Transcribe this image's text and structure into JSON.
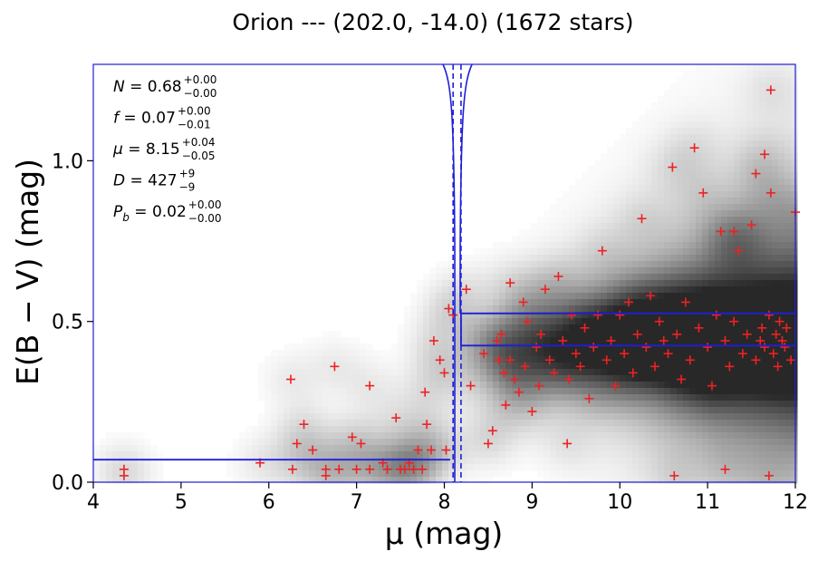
{
  "chart_data": {
    "type": "scatter",
    "title": "Orion --- (202.0, -14.0) (1672 stars)",
    "xlabel": "μ (mag)",
    "ylabel": "E(B − V) (mag)",
    "xlim": [
      4,
      12
    ],
    "ylim": [
      0,
      1.3
    ],
    "xticks": [
      "4",
      "5",
      "6",
      "7",
      "8",
      "9",
      "10",
      "11",
      "12"
    ],
    "yticks": [
      "0.0",
      "0.5",
      "1.0"
    ],
    "grid": false,
    "annotations": [
      {
        "label": "N",
        "value": "0.68",
        "plus": "+0.00",
        "minus": "−0.00"
      },
      {
        "label": "f",
        "value": "0.07",
        "plus": "+0.00",
        "minus": "−0.01"
      },
      {
        "label": "μ",
        "value": "8.15",
        "plus": "+0.04",
        "minus": "−0.05"
      },
      {
        "label": "D",
        "value": "427",
        "plus": "+9",
        "minus": "−9"
      },
      {
        "label": "P_b",
        "value": "0.02",
        "plus": "+0.00",
        "minus": "−0.00"
      }
    ],
    "model": {
      "step_mu": 8.15,
      "step_mu_lo": 8.1,
      "step_mu_hi": 8.19,
      "foreground_ebv": 0.07,
      "background_ebv": 0.425,
      "background_ebv_upper": 0.525
    },
    "series": [
      {
        "marker": "plus",
        "color": "#ee2222",
        "points": [
          [
            4.35,
            0.04
          ],
          [
            4.35,
            0.02
          ],
          [
            5.9,
            0.06
          ],
          [
            6.25,
            0.32
          ],
          [
            6.27,
            0.04
          ],
          [
            6.32,
            0.12
          ],
          [
            6.4,
            0.18
          ],
          [
            6.5,
            0.1
          ],
          [
            6.65,
            0.04
          ],
          [
            6.65,
            0.02
          ],
          [
            6.75,
            0.36
          ],
          [
            6.8,
            0.04
          ],
          [
            6.95,
            0.14
          ],
          [
            7.0,
            0.04
          ],
          [
            7.05,
            0.12
          ],
          [
            7.15,
            0.3
          ],
          [
            7.15,
            0.04
          ],
          [
            7.3,
            0.06
          ],
          [
            7.35,
            0.04
          ],
          [
            7.45,
            0.2
          ],
          [
            7.5,
            0.04
          ],
          [
            7.55,
            0.04
          ],
          [
            7.6,
            0.06
          ],
          [
            7.65,
            0.04
          ],
          [
            7.7,
            0.1
          ],
          [
            7.75,
            0.04
          ],
          [
            7.78,
            0.28
          ],
          [
            7.8,
            0.18
          ],
          [
            7.85,
            0.1
          ],
          [
            7.88,
            0.44
          ],
          [
            7.95,
            0.38
          ],
          [
            8.0,
            0.34
          ],
          [
            8.02,
            0.1
          ],
          [
            8.05,
            0.54
          ],
          [
            8.1,
            0.52
          ],
          [
            8.25,
            0.6
          ],
          [
            8.3,
            0.3
          ],
          [
            8.45,
            0.4
          ],
          [
            8.5,
            0.12
          ],
          [
            8.55,
            0.16
          ],
          [
            8.6,
            0.44
          ],
          [
            8.62,
            0.38
          ],
          [
            8.65,
            0.46
          ],
          [
            8.68,
            0.34
          ],
          [
            8.7,
            0.24
          ],
          [
            8.75,
            0.38
          ],
          [
            8.75,
            0.62
          ],
          [
            8.8,
            0.32
          ],
          [
            8.85,
            0.28
          ],
          [
            8.9,
            0.56
          ],
          [
            8.92,
            0.36
          ],
          [
            8.95,
            0.5
          ],
          [
            9.0,
            0.22
          ],
          [
            9.05,
            0.42
          ],
          [
            9.08,
            0.3
          ],
          [
            9.1,
            0.46
          ],
          [
            9.15,
            0.6
          ],
          [
            9.2,
            0.38
          ],
          [
            9.25,
            0.34
          ],
          [
            9.3,
            0.64
          ],
          [
            9.35,
            0.44
          ],
          [
            9.4,
            0.12
          ],
          [
            9.42,
            0.32
          ],
          [
            9.45,
            0.52
          ],
          [
            9.5,
            0.4
          ],
          [
            9.55,
            0.36
          ],
          [
            9.6,
            0.48
          ],
          [
            9.65,
            0.26
          ],
          [
            9.7,
            0.42
          ],
          [
            9.75,
            0.52
          ],
          [
            9.8,
            0.72
          ],
          [
            9.85,
            0.38
          ],
          [
            9.9,
            0.44
          ],
          [
            9.95,
            0.3
          ],
          [
            10.0,
            0.52
          ],
          [
            10.05,
            0.4
          ],
          [
            10.1,
            0.56
          ],
          [
            10.15,
            0.34
          ],
          [
            10.2,
            0.46
          ],
          [
            10.25,
            0.82
          ],
          [
            10.3,
            0.42
          ],
          [
            10.35,
            0.58
          ],
          [
            10.4,
            0.36
          ],
          [
            10.45,
            0.5
          ],
          [
            10.5,
            0.44
          ],
          [
            10.55,
            0.4
          ],
          [
            10.6,
            0.98
          ],
          [
            10.65,
            0.46
          ],
          [
            10.7,
            0.32
          ],
          [
            10.75,
            0.56
          ],
          [
            10.8,
            0.38
          ],
          [
            10.85,
            1.04
          ],
          [
            10.9,
            0.48
          ],
          [
            10.95,
            0.9
          ],
          [
            11.0,
            0.42
          ],
          [
            11.05,
            0.3
          ],
          [
            11.1,
            0.52
          ],
          [
            11.15,
            0.78
          ],
          [
            11.2,
            0.44
          ],
          [
            11.25,
            0.36
          ],
          [
            11.3,
            0.5
          ],
          [
            11.35,
            0.72
          ],
          [
            11.4,
            0.4
          ],
          [
            11.45,
            0.46
          ],
          [
            11.5,
            0.8
          ],
          [
            11.55,
            0.38
          ],
          [
            11.6,
            0.44
          ],
          [
            11.62,
            0.48
          ],
          [
            11.65,
            0.42
          ],
          [
            11.7,
            0.52
          ],
          [
            11.72,
            1.22
          ],
          [
            11.75,
            0.4
          ],
          [
            11.78,
            0.46
          ],
          [
            11.8,
            0.36
          ],
          [
            11.82,
            0.5
          ],
          [
            11.85,
            0.44
          ],
          [
            11.88,
            0.42
          ],
          [
            11.9,
            0.48
          ],
          [
            11.95,
            0.38
          ],
          [
            12.0,
            0.84
          ],
          [
            11.65,
            1.02
          ],
          [
            11.55,
            0.96
          ],
          [
            11.72,
            0.9
          ],
          [
            11.3,
            0.78
          ],
          [
            10.62,
            0.02
          ],
          [
            11.2,
            0.04
          ],
          [
            11.7,
            0.02
          ]
        ]
      }
    ]
  }
}
